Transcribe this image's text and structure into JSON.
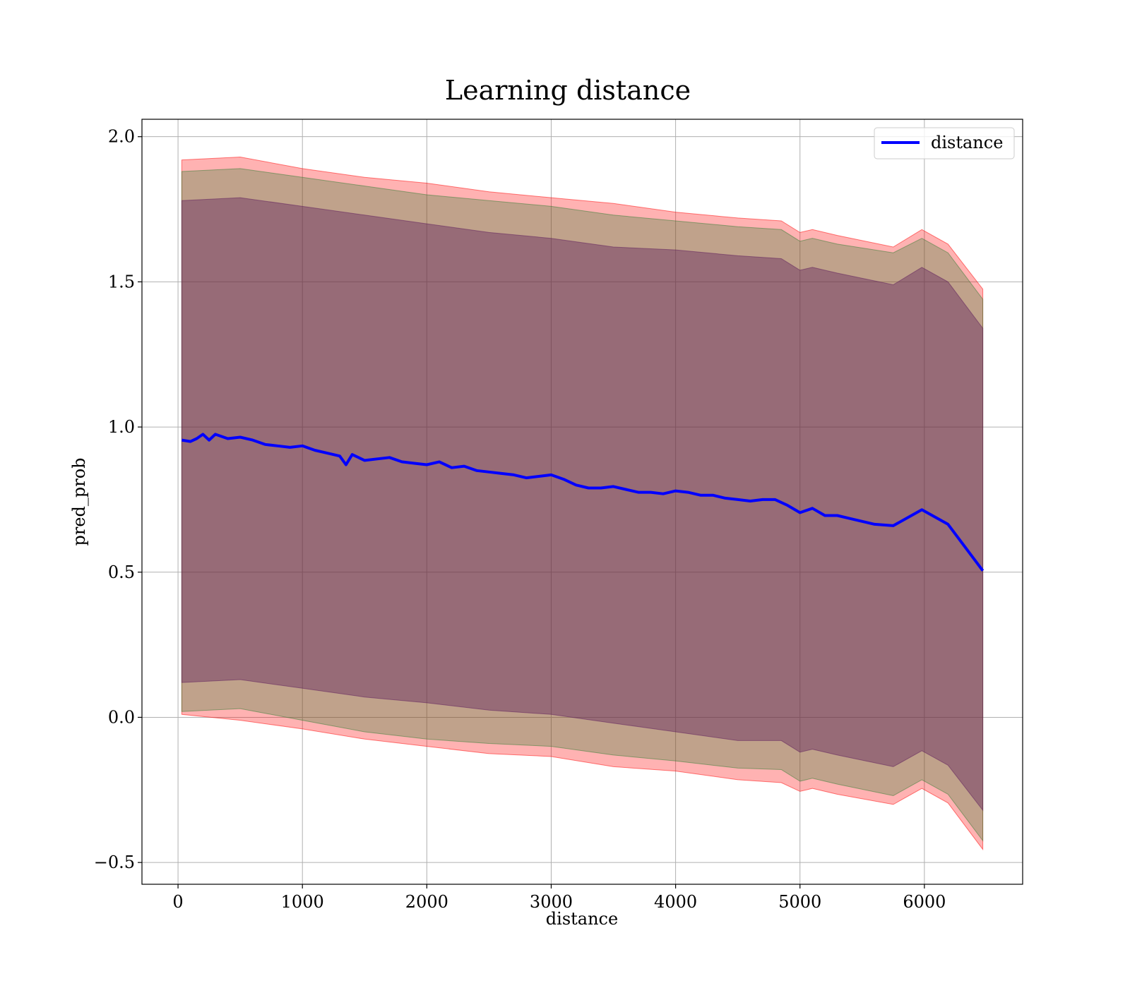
{
  "chart_data": {
    "type": "line",
    "title": "Learning distance",
    "xlabel": "distance",
    "ylabel": "pred_prob",
    "xlim": [
      -290,
      6790
    ],
    "ylim": [
      -0.575,
      2.06
    ],
    "x_ticks": [
      0,
      1000,
      2000,
      3000,
      4000,
      5000,
      6000
    ],
    "x_tick_labels": [
      "0",
      "1000",
      "2000",
      "3000",
      "4000",
      "5000",
      "6000"
    ],
    "y_ticks": [
      -0.5,
      0.0,
      0.5,
      1.0,
      1.5,
      2.0
    ],
    "y_tick_labels": [
      "−0.5",
      "0.0",
      "0.5",
      "1.0",
      "1.5",
      "2.0"
    ],
    "grid": true,
    "legend": {
      "position": "top-right",
      "entries": [
        {
          "name": "distance",
          "color": "#0000ff"
        }
      ]
    },
    "series": [
      {
        "name": "distance",
        "color": "#0000ff",
        "x": [
          30,
          100,
          150,
          200,
          250,
          300,
          400,
          500,
          600,
          700,
          800,
          900,
          1000,
          1100,
          1200,
          1300,
          1350,
          1400,
          1500,
          1600,
          1700,
          1800,
          1900,
          2000,
          2100,
          2200,
          2300,
          2400,
          2500,
          2600,
          2700,
          2800,
          2900,
          3000,
          3100,
          3200,
          3300,
          3400,
          3500,
          3600,
          3700,
          3800,
          3900,
          4000,
          4100,
          4200,
          4300,
          4400,
          4500,
          4600,
          4700,
          4800,
          4900,
          5000,
          5100,
          5200,
          5300,
          5400,
          5500,
          5600,
          5750,
          5980,
          6190,
          6470
        ],
        "y": [
          0.955,
          0.95,
          0.96,
          0.975,
          0.955,
          0.975,
          0.96,
          0.965,
          0.955,
          0.94,
          0.935,
          0.93,
          0.935,
          0.92,
          0.91,
          0.9,
          0.87,
          0.905,
          0.885,
          0.89,
          0.895,
          0.88,
          0.875,
          0.87,
          0.88,
          0.86,
          0.865,
          0.85,
          0.845,
          0.84,
          0.835,
          0.825,
          0.83,
          0.835,
          0.82,
          0.8,
          0.79,
          0.79,
          0.795,
          0.785,
          0.775,
          0.775,
          0.77,
          0.78,
          0.775,
          0.765,
          0.765,
          0.755,
          0.75,
          0.745,
          0.75,
          0.75,
          0.73,
          0.705,
          0.72,
          0.695,
          0.695,
          0.685,
          0.675,
          0.665,
          0.66,
          0.715,
          0.665,
          0.505
        ]
      }
    ],
    "bands": [
      {
        "color": "#ff0000",
        "opacity": 0.3,
        "x": [
          30,
          500,
          1000,
          1500,
          2000,
          2500,
          3000,
          3500,
          4000,
          4500,
          4850,
          5000,
          5100,
          5300,
          5750,
          5980,
          6190,
          6470
        ],
        "upper": [
          1.92,
          1.93,
          1.89,
          1.86,
          1.84,
          1.81,
          1.79,
          1.77,
          1.74,
          1.72,
          1.71,
          1.67,
          1.68,
          1.66,
          1.62,
          1.68,
          1.63,
          1.475
        ],
        "lower": [
          0.01,
          -0.01,
          -0.04,
          -0.075,
          -0.1,
          -0.125,
          -0.135,
          -0.17,
          -0.185,
          -0.215,
          -0.225,
          -0.255,
          -0.245,
          -0.265,
          -0.3,
          -0.245,
          -0.295,
          -0.455
        ]
      },
      {
        "color": "#2e7d32",
        "opacity": 0.3,
        "x": [
          30,
          500,
          1000,
          1500,
          2000,
          2500,
          3000,
          3500,
          4000,
          4500,
          4850,
          5000,
          5100,
          5300,
          5750,
          5980,
          6190,
          6470
        ],
        "upper": [
          1.88,
          1.89,
          1.86,
          1.83,
          1.8,
          1.78,
          1.76,
          1.73,
          1.71,
          1.69,
          1.68,
          1.64,
          1.65,
          1.63,
          1.6,
          1.65,
          1.6,
          1.44
        ],
        "lower": [
          0.02,
          0.03,
          -0.01,
          -0.05,
          -0.075,
          -0.09,
          -0.1,
          -0.13,
          -0.15,
          -0.175,
          -0.18,
          -0.22,
          -0.21,
          -0.23,
          -0.27,
          -0.215,
          -0.265,
          -0.425
        ]
      },
      {
        "color": "#5b1a5b",
        "opacity": 0.4,
        "x": [
          30,
          500,
          1000,
          1500,
          2000,
          2500,
          3000,
          3500,
          4000,
          4500,
          4850,
          5000,
          5100,
          5300,
          5750,
          5980,
          6190,
          6470
        ],
        "upper": [
          1.78,
          1.79,
          1.76,
          1.73,
          1.7,
          1.67,
          1.65,
          1.62,
          1.61,
          1.59,
          1.58,
          1.54,
          1.55,
          1.53,
          1.49,
          1.55,
          1.5,
          1.34
        ],
        "lower": [
          0.12,
          0.13,
          0.1,
          0.07,
          0.05,
          0.025,
          0.01,
          -0.02,
          -0.05,
          -0.08,
          -0.08,
          -0.12,
          -0.11,
          -0.13,
          -0.17,
          -0.115,
          -0.165,
          -0.32
        ]
      }
    ]
  }
}
